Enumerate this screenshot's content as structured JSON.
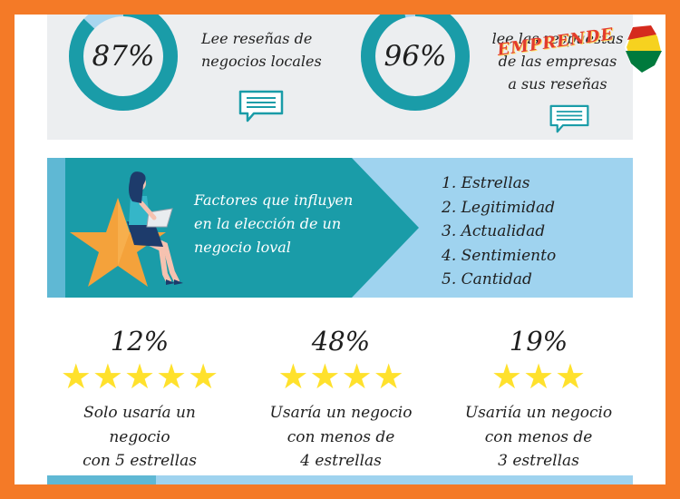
{
  "stats": [
    {
      "value": "87%",
      "fraction": 0.87,
      "lines": [
        "Lee reseñas de",
        "negocios locales"
      ]
    },
    {
      "value": "96%",
      "fraction": 0.96,
      "lines": [
        "lee las respuestas",
        "de las empresas",
        "a sus reseñas"
      ]
    }
  ],
  "logo": {
    "text": "EMPRENDE",
    "icon": "bolivia-flag-map-icon"
  },
  "factors": {
    "title_lines": [
      "Factores que influyen",
      "en la elección de un",
      "negocio loval"
    ],
    "items": [
      "1. Estrellas",
      "2. Legitimidad",
      "3. Actualidad",
      "4. Sentimiento",
      "5. Cantidad"
    ]
  },
  "ratings": [
    {
      "value": "12%",
      "stars": 5,
      "lines": [
        "Solo usaría un",
        "negocio",
        "con 5 estrellas"
      ]
    },
    {
      "value": "48%",
      "stars": 4,
      "lines": [
        "Usaría un negocio",
        "con menos de",
        "4 estrellas"
      ]
    },
    {
      "value": "19%",
      "stars": 3,
      "lines": [
        "Usariía un negocio",
        "con menos de",
        "3 estrellas"
      ]
    }
  ],
  "colors": {
    "frame": "#f47a27",
    "ring": "#1a9ca8",
    "ring_rest": "#a8d6ef",
    "banner": "#9fd3ef",
    "banner_arrow": "#1a9ca8",
    "star": "#ffe12c",
    "chat_icon": "#1a9ca8"
  }
}
